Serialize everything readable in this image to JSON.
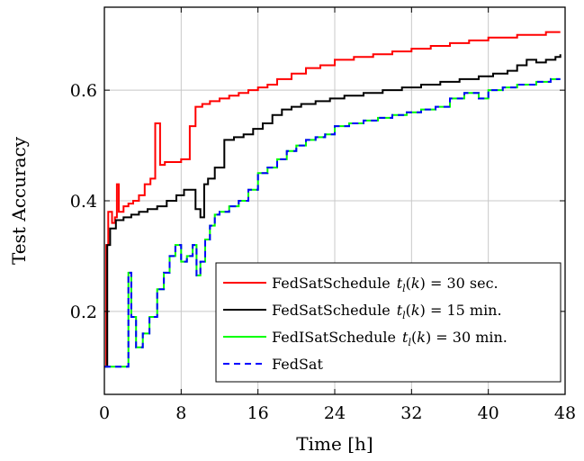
{
  "chart_data": {
    "type": "line",
    "title": "",
    "xlabel": "Time [h]",
    "ylabel": "Test Accuracy",
    "xlim": [
      0,
      48
    ],
    "ylim": [
      0.05,
      0.75
    ],
    "xticks": [
      0,
      8,
      16,
      24,
      32,
      40,
      48
    ],
    "yticks": [
      0.2,
      0.4,
      0.6
    ],
    "xtick_labels": [
      "0",
      "8",
      "16",
      "24",
      "32",
      "40",
      "48"
    ],
    "ytick_labels": [
      "0.2",
      "0.4",
      "0.6"
    ],
    "grid": true,
    "legend_position": "bottom-right",
    "series": [
      {
        "name": "FedSatSchedule",
        "param": "t_l(k) = 30 sec.",
        "color": "#ff0000",
        "dash": "solid",
        "step": true,
        "x": [
          0,
          0.2,
          0.4,
          0.8,
          1.1,
          1.3,
          1.5,
          1.6,
          2.0,
          2.5,
          3.0,
          3.6,
          4.2,
          4.8,
          5.3,
          5.5,
          5.8,
          6.3,
          7.2,
          8.0,
          8.7,
          8.9,
          9.5,
          10.2,
          11.0,
          12.0,
          13.0,
          14.0,
          15.0,
          16.0,
          17.0,
          18.0,
          19.5,
          21.0,
          22.5,
          24.0,
          26.0,
          28.0,
          30.0,
          32.0,
          34.0,
          36.0,
          38.0,
          40.0,
          42.0,
          43.0,
          44.0,
          46.0,
          47.5
        ],
        "y": [
          0.1,
          0.32,
          0.38,
          0.36,
          0.37,
          0.43,
          0.38,
          0.38,
          0.39,
          0.395,
          0.4,
          0.41,
          0.43,
          0.44,
          0.54,
          0.54,
          0.465,
          0.47,
          0.47,
          0.475,
          0.475,
          0.535,
          0.57,
          0.575,
          0.58,
          0.585,
          0.59,
          0.595,
          0.6,
          0.605,
          0.61,
          0.62,
          0.63,
          0.64,
          0.645,
          0.655,
          0.66,
          0.665,
          0.67,
          0.675,
          0.68,
          0.685,
          0.69,
          0.695,
          0.695,
          0.7,
          0.7,
          0.705,
          0.705
        ]
      },
      {
        "name": "FedSatSchedule",
        "param": "t_l(k) = 15 min.",
        "color": "#000000",
        "dash": "solid",
        "step": true,
        "x": [
          0,
          0.3,
          0.6,
          1.2,
          2.0,
          2.8,
          3.6,
          4.5,
          5.5,
          6.5,
          7.5,
          8.3,
          9.2,
          9.5,
          10.0,
          10.4,
          10.8,
          11.5,
          12.5,
          13.5,
          14.5,
          15.5,
          16.5,
          17.5,
          18.5,
          19.5,
          20.5,
          22.0,
          23.5,
          25.0,
          27.0,
          29.0,
          31.0,
          33.0,
          35.0,
          37.0,
          39.0,
          40.5,
          42.0,
          43.0,
          44.0,
          45.0,
          46.0,
          47.0,
          47.5
        ],
        "y": [
          0.1,
          0.32,
          0.35,
          0.365,
          0.37,
          0.375,
          0.38,
          0.385,
          0.39,
          0.4,
          0.41,
          0.42,
          0.42,
          0.385,
          0.37,
          0.43,
          0.44,
          0.46,
          0.51,
          0.515,
          0.52,
          0.53,
          0.54,
          0.555,
          0.565,
          0.57,
          0.575,
          0.58,
          0.585,
          0.59,
          0.595,
          0.6,
          0.605,
          0.61,
          0.615,
          0.62,
          0.625,
          0.63,
          0.635,
          0.645,
          0.655,
          0.65,
          0.655,
          0.66,
          0.665
        ]
      },
      {
        "name": "FedISatSchedule",
        "param": "t_l(k) = 30 min.",
        "color": "#00ff00",
        "dash": "solid",
        "step": true,
        "x": [
          0,
          2.2,
          2.5,
          2.8,
          3.3,
          4.0,
          4.7,
          5.5,
          6.2,
          6.8,
          7.4,
          8.0,
          8.6,
          9.2,
          9.6,
          10.0,
          10.5,
          11.0,
          11.5,
          12.0,
          13.0,
          14.0,
          15.0,
          16.0,
          17.0,
          18.0,
          19.0,
          20.0,
          21.0,
          22.0,
          23.0,
          24.0,
          25.5,
          27.0,
          28.5,
          30.0,
          31.5,
          33.0,
          34.5,
          36.0,
          37.5,
          39.0,
          40.0,
          41.5,
          43.0,
          45.0,
          46.5,
          47.5
        ],
        "y": [
          0.1,
          0.1,
          0.27,
          0.19,
          0.135,
          0.16,
          0.19,
          0.24,
          0.27,
          0.3,
          0.32,
          0.29,
          0.3,
          0.32,
          0.265,
          0.29,
          0.33,
          0.355,
          0.375,
          0.38,
          0.39,
          0.4,
          0.42,
          0.45,
          0.46,
          0.475,
          0.49,
          0.5,
          0.51,
          0.515,
          0.52,
          0.535,
          0.54,
          0.545,
          0.55,
          0.555,
          0.56,
          0.565,
          0.57,
          0.585,
          0.595,
          0.585,
          0.6,
          0.605,
          0.61,
          0.615,
          0.62,
          0.62
        ]
      },
      {
        "name": "FedSat",
        "param": "",
        "color": "#0000ff",
        "dash": "dashed",
        "step": true,
        "x": [
          0,
          2.2,
          2.5,
          2.8,
          3.3,
          4.0,
          4.7,
          5.5,
          6.2,
          6.8,
          7.4,
          8.0,
          8.6,
          9.2,
          9.6,
          10.0,
          10.5,
          11.0,
          11.5,
          12.0,
          13.0,
          14.0,
          15.0,
          16.0,
          17.0,
          18.0,
          19.0,
          20.0,
          21.0,
          22.0,
          23.0,
          24.0,
          25.5,
          27.0,
          28.5,
          30.0,
          31.5,
          33.0,
          34.5,
          36.0,
          37.5,
          39.0,
          40.0,
          41.5,
          43.0,
          45.0,
          46.5,
          47.5
        ],
        "y": [
          0.1,
          0.1,
          0.27,
          0.19,
          0.135,
          0.16,
          0.19,
          0.24,
          0.27,
          0.3,
          0.32,
          0.29,
          0.3,
          0.32,
          0.265,
          0.29,
          0.33,
          0.355,
          0.375,
          0.38,
          0.39,
          0.4,
          0.42,
          0.45,
          0.46,
          0.475,
          0.49,
          0.5,
          0.51,
          0.515,
          0.52,
          0.535,
          0.54,
          0.545,
          0.55,
          0.555,
          0.56,
          0.565,
          0.57,
          0.585,
          0.595,
          0.585,
          0.6,
          0.605,
          0.61,
          0.615,
          0.62,
          0.62
        ]
      }
    ]
  }
}
